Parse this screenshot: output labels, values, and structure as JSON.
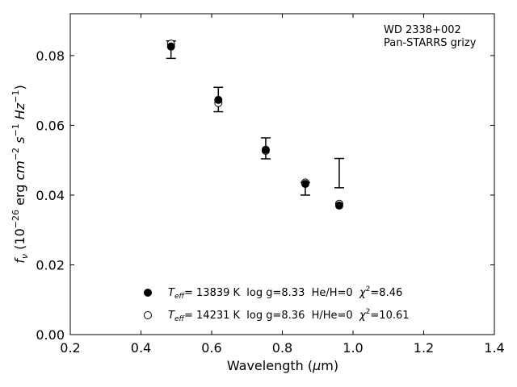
{
  "chart_data": {
    "type": "scatter",
    "annotation_lines": [
      "WD 2338+002",
      "Pan-STARRS grizy"
    ],
    "xlabel": "Wavelength ($\\mu$m)",
    "xlabel_parts": {
      "pre": "Wavelength (",
      "greek": "μ",
      "post": "m)"
    },
    "ylabel": "f_ν (10^{-26} erg cm^{-2} s^{-1} Hz^{-1})",
    "xlim": [
      0.2,
      1.4
    ],
    "ylim": [
      0.0,
      0.092
    ],
    "xticks": [
      0.2,
      0.4,
      0.6,
      0.8,
      1.0,
      1.2,
      1.4
    ],
    "xtick_labels": [
      "0.2",
      "0.4",
      "0.6",
      "0.8",
      "1.0",
      "1.2",
      "1.4"
    ],
    "yticks": [
      0.0,
      0.02,
      0.04,
      0.06,
      0.08
    ],
    "ytick_labels": [
      "0.00",
      "0.02",
      "0.04",
      "0.06",
      "0.08"
    ],
    "grid": false,
    "legend_position": "lower-center",
    "observed": {
      "x": [
        0.485,
        0.619,
        0.753,
        0.865,
        0.961
      ],
      "y": [
        0.0817,
        0.0674,
        0.0534,
        0.0418,
        0.0463
      ],
      "err": [
        0.0025,
        0.0035,
        0.003,
        0.0018,
        0.0042
      ]
    },
    "series": [
      {
        "name": "T_eff= 13839 K  log g=8.33  He/H=0  χ²=8.46",
        "legend": {
          "teff": "= 13839 K  log g=8.33  He/H=0  ",
          "chi": "=8.46"
        },
        "marker": "filled-circle",
        "x": [
          0.485,
          0.619,
          0.753,
          0.865,
          0.961
        ],
        "y": [
          0.0826,
          0.0673,
          0.053,
          0.0432,
          0.037
        ]
      },
      {
        "name": "T_eff= 14231 K  log g=8.36  H/He=0  χ²=10.61",
        "legend": {
          "teff": "= 14231 K  log g=8.36  H/He=0  ",
          "chi": "=10.61"
        },
        "marker": "open-circle",
        "x": [
          0.485,
          0.619,
          0.753,
          0.865,
          0.961
        ],
        "y": [
          0.0834,
          0.0664,
          0.0527,
          0.0436,
          0.0375
        ]
      }
    ]
  }
}
